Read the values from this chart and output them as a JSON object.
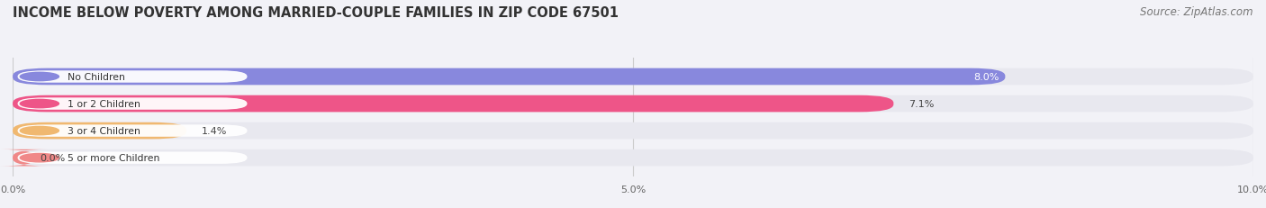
{
  "title": "INCOME BELOW POVERTY AMONG MARRIED-COUPLE FAMILIES IN ZIP CODE 67501",
  "source": "Source: ZipAtlas.com",
  "categories": [
    "No Children",
    "1 or 2 Children",
    "3 or 4 Children",
    "5 or more Children"
  ],
  "values": [
    8.0,
    7.1,
    1.4,
    0.0
  ],
  "bar_colors": [
    "#8888dd",
    "#ee5588",
    "#f0b870",
    "#f08888"
  ],
  "xlim": [
    0,
    10.0
  ],
  "xticks": [
    0.0,
    5.0,
    10.0
  ],
  "xticklabels": [
    "0.0%",
    "5.0%",
    "10.0%"
  ],
  "background_color": "#f2f2f7",
  "bar_bg_color": "#e2e2ea",
  "bar_track_color": "#e8e8ef",
  "title_fontsize": 10.5,
  "source_fontsize": 8.5,
  "figsize": [
    14.06,
    2.32
  ],
  "dpi": 100
}
